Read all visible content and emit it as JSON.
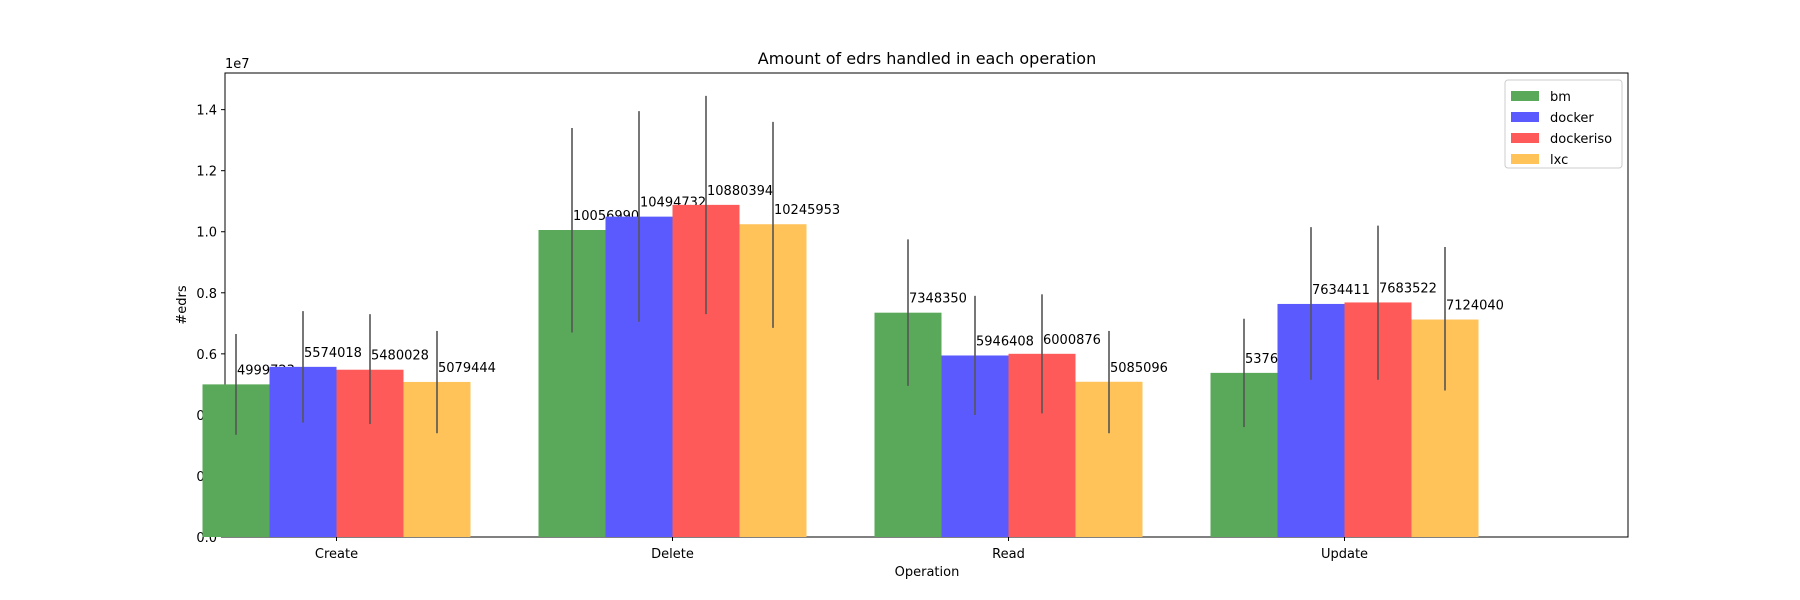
{
  "chart_data": {
    "type": "bar",
    "title": "Amount of edrs handled in each operation",
    "xlabel": "Operation",
    "ylabel": "#edrs",
    "y_offset_text": "1e7",
    "ylim": [
      0,
      15200000
    ],
    "yticks": [
      0,
      2000000,
      4000000,
      6000000,
      8000000,
      10000000,
      12000000,
      14000000
    ],
    "ytick_labels": [
      "0.0",
      "0.2",
      "0.4",
      "0.6",
      "0.8",
      "1.0",
      "1.2",
      "1.4"
    ],
    "categories": [
      "Create",
      "Delete",
      "Read",
      "Update"
    ],
    "legend_position": "upper right",
    "series": [
      {
        "name": "bm",
        "color": "#5aa95a",
        "values": [
          4999723,
          10056990,
          7348350,
          5376582
        ],
        "error_low": [
          3350000,
          6700000,
          4950000,
          3600000
        ],
        "error_high": [
          6650000,
          13400000,
          9750000,
          7150000
        ]
      },
      {
        "name": "docker",
        "color": "#5a5aff",
        "values": [
          5574018,
          10494732,
          5946408,
          7634411
        ],
        "error_low": [
          3750000,
          7050000,
          4000000,
          5150000
        ],
        "error_high": [
          7400000,
          13950000,
          7900000,
          10150000
        ]
      },
      {
        "name": "dockeriso",
        "color": "#ff5a5a",
        "values": [
          5480028,
          10880394,
          6000876,
          7683522
        ],
        "error_low": [
          3700000,
          7300000,
          4050000,
          5150000
        ],
        "error_high": [
          7300000,
          14450000,
          7950000,
          10200000
        ]
      },
      {
        "name": "lxc",
        "color": "#ffc35a",
        "values": [
          5079444,
          10245953,
          5085096,
          7124040
        ],
        "error_low": [
          3400000,
          6850000,
          3400000,
          4800000
        ],
        "error_high": [
          6750000,
          13600000,
          6750000,
          9500000
        ]
      }
    ]
  }
}
